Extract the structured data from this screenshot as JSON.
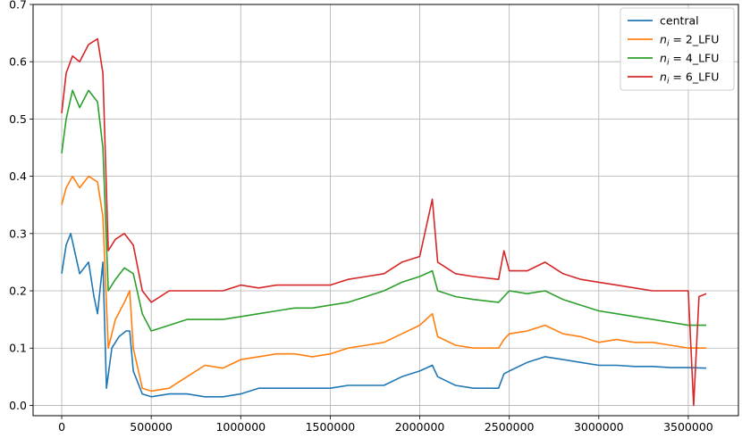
{
  "chart_data": {
    "type": "line",
    "title": "",
    "xlabel": "",
    "ylabel": "",
    "xlim": [
      -160000,
      3780000
    ],
    "ylim": [
      -0.018,
      0.7
    ],
    "x_ticks": [
      0,
      500000,
      1000000,
      1500000,
      2000000,
      2500000,
      3000000,
      3500000
    ],
    "x_tick_labels": [
      "0",
      "500000",
      "1000000",
      "1500000",
      "2000000",
      "2500000",
      "3000000",
      "3500000"
    ],
    "y_ticks": [
      0.0,
      0.1,
      0.2,
      0.3,
      0.4,
      0.5,
      0.6,
      0.7
    ],
    "y_tick_labels": [
      "0.0",
      "0.1",
      "0.2",
      "0.3",
      "0.4",
      "0.5",
      "0.6",
      "0.7"
    ],
    "grid": true,
    "legend_position": "top-right",
    "series": [
      {
        "name": "central",
        "legend_main": "central",
        "legend_sub": "",
        "legend_rest": "",
        "color": "#1f77b4",
        "points": [
          [
            0,
            0.23
          ],
          [
            25000,
            0.28
          ],
          [
            50000,
            0.3
          ],
          [
            100000,
            0.23
          ],
          [
            150000,
            0.25
          ],
          [
            180000,
            0.19
          ],
          [
            200000,
            0.16
          ],
          [
            230000,
            0.25
          ],
          [
            250000,
            0.03
          ],
          [
            280000,
            0.1
          ],
          [
            320000,
            0.12
          ],
          [
            360000,
            0.13
          ],
          [
            380000,
            0.13
          ],
          [
            400000,
            0.06
          ],
          [
            450000,
            0.02
          ],
          [
            500000,
            0.015
          ],
          [
            600000,
            0.02
          ],
          [
            700000,
            0.02
          ],
          [
            800000,
            0.015
          ],
          [
            900000,
            0.015
          ],
          [
            1000000,
            0.02
          ],
          [
            1100000,
            0.03
          ],
          [
            1200000,
            0.03
          ],
          [
            1300000,
            0.03
          ],
          [
            1400000,
            0.03
          ],
          [
            1500000,
            0.03
          ],
          [
            1600000,
            0.035
          ],
          [
            1700000,
            0.035
          ],
          [
            1800000,
            0.035
          ],
          [
            1900000,
            0.05
          ],
          [
            2000000,
            0.06
          ],
          [
            2070000,
            0.07
          ],
          [
            2100000,
            0.05
          ],
          [
            2200000,
            0.035
          ],
          [
            2300000,
            0.03
          ],
          [
            2440000,
            0.03
          ],
          [
            2470000,
            0.055
          ],
          [
            2500000,
            0.06
          ],
          [
            2600000,
            0.075
          ],
          [
            2700000,
            0.085
          ],
          [
            2800000,
            0.08
          ],
          [
            2900000,
            0.075
          ],
          [
            3000000,
            0.07
          ],
          [
            3100000,
            0.07
          ],
          [
            3200000,
            0.068
          ],
          [
            3300000,
            0.068
          ],
          [
            3400000,
            0.066
          ],
          [
            3500000,
            0.066
          ],
          [
            3600000,
            0.065
          ]
        ]
      },
      {
        "name": "n_i = 2_LFU",
        "legend_main": "n",
        "legend_sub": "i",
        "legend_rest": " = 2_LFU",
        "color": "#ff7f0e",
        "points": [
          [
            0,
            0.35
          ],
          [
            25000,
            0.38
          ],
          [
            60000,
            0.4
          ],
          [
            100000,
            0.38
          ],
          [
            150000,
            0.4
          ],
          [
            200000,
            0.39
          ],
          [
            230000,
            0.33
          ],
          [
            260000,
            0.1
          ],
          [
            300000,
            0.15
          ],
          [
            350000,
            0.18
          ],
          [
            380000,
            0.2
          ],
          [
            400000,
            0.1
          ],
          [
            450000,
            0.03
          ],
          [
            500000,
            0.025
          ],
          [
            600000,
            0.03
          ],
          [
            700000,
            0.05
          ],
          [
            800000,
            0.07
          ],
          [
            900000,
            0.065
          ],
          [
            1000000,
            0.08
          ],
          [
            1100000,
            0.085
          ],
          [
            1200000,
            0.09
          ],
          [
            1300000,
            0.09
          ],
          [
            1400000,
            0.085
          ],
          [
            1500000,
            0.09
          ],
          [
            1600000,
            0.1
          ],
          [
            1700000,
            0.105
          ],
          [
            1800000,
            0.11
          ],
          [
            1900000,
            0.125
          ],
          [
            2000000,
            0.14
          ],
          [
            2070000,
            0.16
          ],
          [
            2100000,
            0.12
          ],
          [
            2200000,
            0.105
          ],
          [
            2300000,
            0.1
          ],
          [
            2440000,
            0.1
          ],
          [
            2470000,
            0.115
          ],
          [
            2500000,
            0.125
          ],
          [
            2600000,
            0.13
          ],
          [
            2700000,
            0.14
          ],
          [
            2800000,
            0.125
          ],
          [
            2900000,
            0.12
          ],
          [
            3000000,
            0.11
          ],
          [
            3100000,
            0.115
          ],
          [
            3200000,
            0.11
          ],
          [
            3300000,
            0.11
          ],
          [
            3400000,
            0.105
          ],
          [
            3500000,
            0.1
          ],
          [
            3600000,
            0.1
          ]
        ]
      },
      {
        "name": "n_i = 4_LFU",
        "legend_main": "n",
        "legend_sub": "i",
        "legend_rest": " = 4_LFU",
        "color": "#2ca02c",
        "points": [
          [
            0,
            0.44
          ],
          [
            25000,
            0.5
          ],
          [
            60000,
            0.55
          ],
          [
            100000,
            0.52
          ],
          [
            150000,
            0.55
          ],
          [
            200000,
            0.53
          ],
          [
            230000,
            0.45
          ],
          [
            260000,
            0.2
          ],
          [
            300000,
            0.22
          ],
          [
            350000,
            0.24
          ],
          [
            400000,
            0.23
          ],
          [
            450000,
            0.16
          ],
          [
            500000,
            0.13
          ],
          [
            600000,
            0.14
          ],
          [
            700000,
            0.15
          ],
          [
            800000,
            0.15
          ],
          [
            900000,
            0.15
          ],
          [
            1000000,
            0.155
          ],
          [
            1100000,
            0.16
          ],
          [
            1200000,
            0.165
          ],
          [
            1300000,
            0.17
          ],
          [
            1400000,
            0.17
          ],
          [
            1500000,
            0.175
          ],
          [
            1600000,
            0.18
          ],
          [
            1700000,
            0.19
          ],
          [
            1800000,
            0.2
          ],
          [
            1900000,
            0.215
          ],
          [
            2000000,
            0.225
          ],
          [
            2070000,
            0.235
          ],
          [
            2100000,
            0.2
          ],
          [
            2200000,
            0.19
          ],
          [
            2300000,
            0.185
          ],
          [
            2440000,
            0.18
          ],
          [
            2470000,
            0.19
          ],
          [
            2500000,
            0.2
          ],
          [
            2600000,
            0.195
          ],
          [
            2700000,
            0.2
          ],
          [
            2800000,
            0.185
          ],
          [
            2900000,
            0.175
          ],
          [
            3000000,
            0.165
          ],
          [
            3100000,
            0.16
          ],
          [
            3200000,
            0.155
          ],
          [
            3300000,
            0.15
          ],
          [
            3400000,
            0.145
          ],
          [
            3500000,
            0.14
          ],
          [
            3600000,
            0.14
          ]
        ]
      },
      {
        "name": "n_i = 6_LFU",
        "legend_main": "n",
        "legend_sub": "i",
        "legend_rest": " = 6_LFU",
        "color": "#d62728",
        "points": [
          [
            0,
            0.51
          ],
          [
            25000,
            0.58
          ],
          [
            60000,
            0.61
          ],
          [
            100000,
            0.6
          ],
          [
            150000,
            0.63
          ],
          [
            200000,
            0.64
          ],
          [
            230000,
            0.58
          ],
          [
            260000,
            0.27
          ],
          [
            300000,
            0.29
          ],
          [
            350000,
            0.3
          ],
          [
            400000,
            0.28
          ],
          [
            450000,
            0.2
          ],
          [
            500000,
            0.18
          ],
          [
            600000,
            0.2
          ],
          [
            700000,
            0.2
          ],
          [
            800000,
            0.2
          ],
          [
            900000,
            0.2
          ],
          [
            1000000,
            0.21
          ],
          [
            1100000,
            0.205
          ],
          [
            1200000,
            0.21
          ],
          [
            1300000,
            0.21
          ],
          [
            1400000,
            0.21
          ],
          [
            1500000,
            0.21
          ],
          [
            1600000,
            0.22
          ],
          [
            1700000,
            0.225
          ],
          [
            1800000,
            0.23
          ],
          [
            1900000,
            0.25
          ],
          [
            2000000,
            0.26
          ],
          [
            2070000,
            0.36
          ],
          [
            2100000,
            0.25
          ],
          [
            2200000,
            0.23
          ],
          [
            2300000,
            0.225
          ],
          [
            2440000,
            0.22
          ],
          [
            2470000,
            0.27
          ],
          [
            2500000,
            0.235
          ],
          [
            2600000,
            0.235
          ],
          [
            2700000,
            0.25
          ],
          [
            2800000,
            0.23
          ],
          [
            2900000,
            0.22
          ],
          [
            3000000,
            0.215
          ],
          [
            3100000,
            0.21
          ],
          [
            3200000,
            0.205
          ],
          [
            3300000,
            0.2
          ],
          [
            3400000,
            0.2
          ],
          [
            3500000,
            0.2
          ],
          [
            3530000,
            0.0
          ],
          [
            3560000,
            0.19
          ],
          [
            3600000,
            0.195
          ]
        ]
      }
    ]
  }
}
